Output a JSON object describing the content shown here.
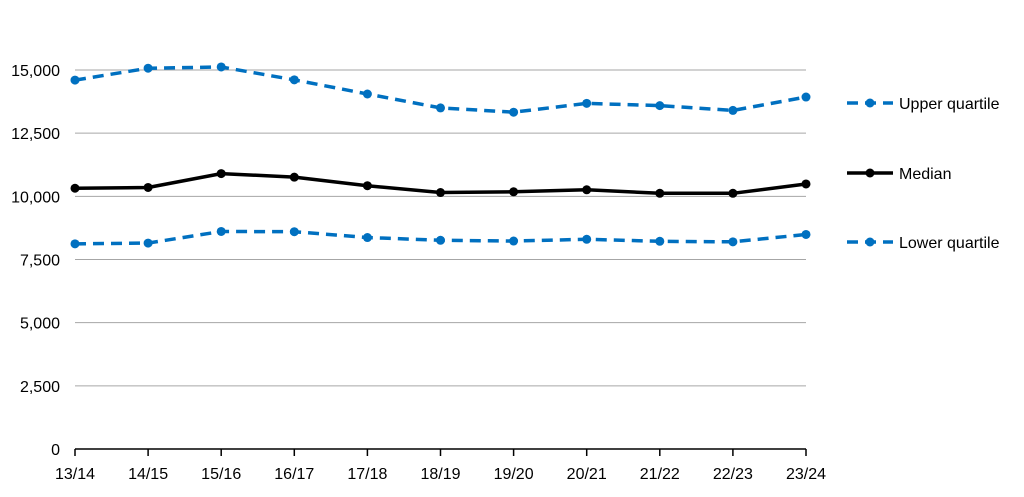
{
  "chart_data": {
    "type": "line",
    "categories": [
      "13/14",
      "14/15",
      "15/16",
      "16/17",
      "17/18",
      "18/19",
      "19/20",
      "20/21",
      "21/22",
      "22/23",
      "23/24"
    ],
    "series": [
      {
        "name": "Upper quartile",
        "color": "#0070C0",
        "style": "dashed",
        "values": [
          14600,
          15070,
          15120,
          14610,
          14050,
          13500,
          13330,
          13680,
          13590,
          13400,
          13930
        ]
      },
      {
        "name": "Median",
        "color": "#000000",
        "style": "solid",
        "values": [
          10320,
          10350,
          10900,
          10760,
          10420,
          10150,
          10180,
          10260,
          10120,
          10120,
          10490
        ]
      },
      {
        "name": "Lower quartile",
        "color": "#0070C0",
        "style": "dashed",
        "values": [
          8120,
          8150,
          8610,
          8600,
          8370,
          8260,
          8230,
          8300,
          8220,
          8200,
          8490
        ]
      }
    ],
    "y_ticks": [
      "0",
      "2,500",
      "5,000",
      "7,500",
      "10,000",
      "12,500",
      "15,000"
    ],
    "ylim": [
      0,
      15000
    ],
    "y_step": 2500,
    "grid": true,
    "legend_position": "right",
    "title": "",
    "xlabel": "",
    "ylabel": ""
  }
}
